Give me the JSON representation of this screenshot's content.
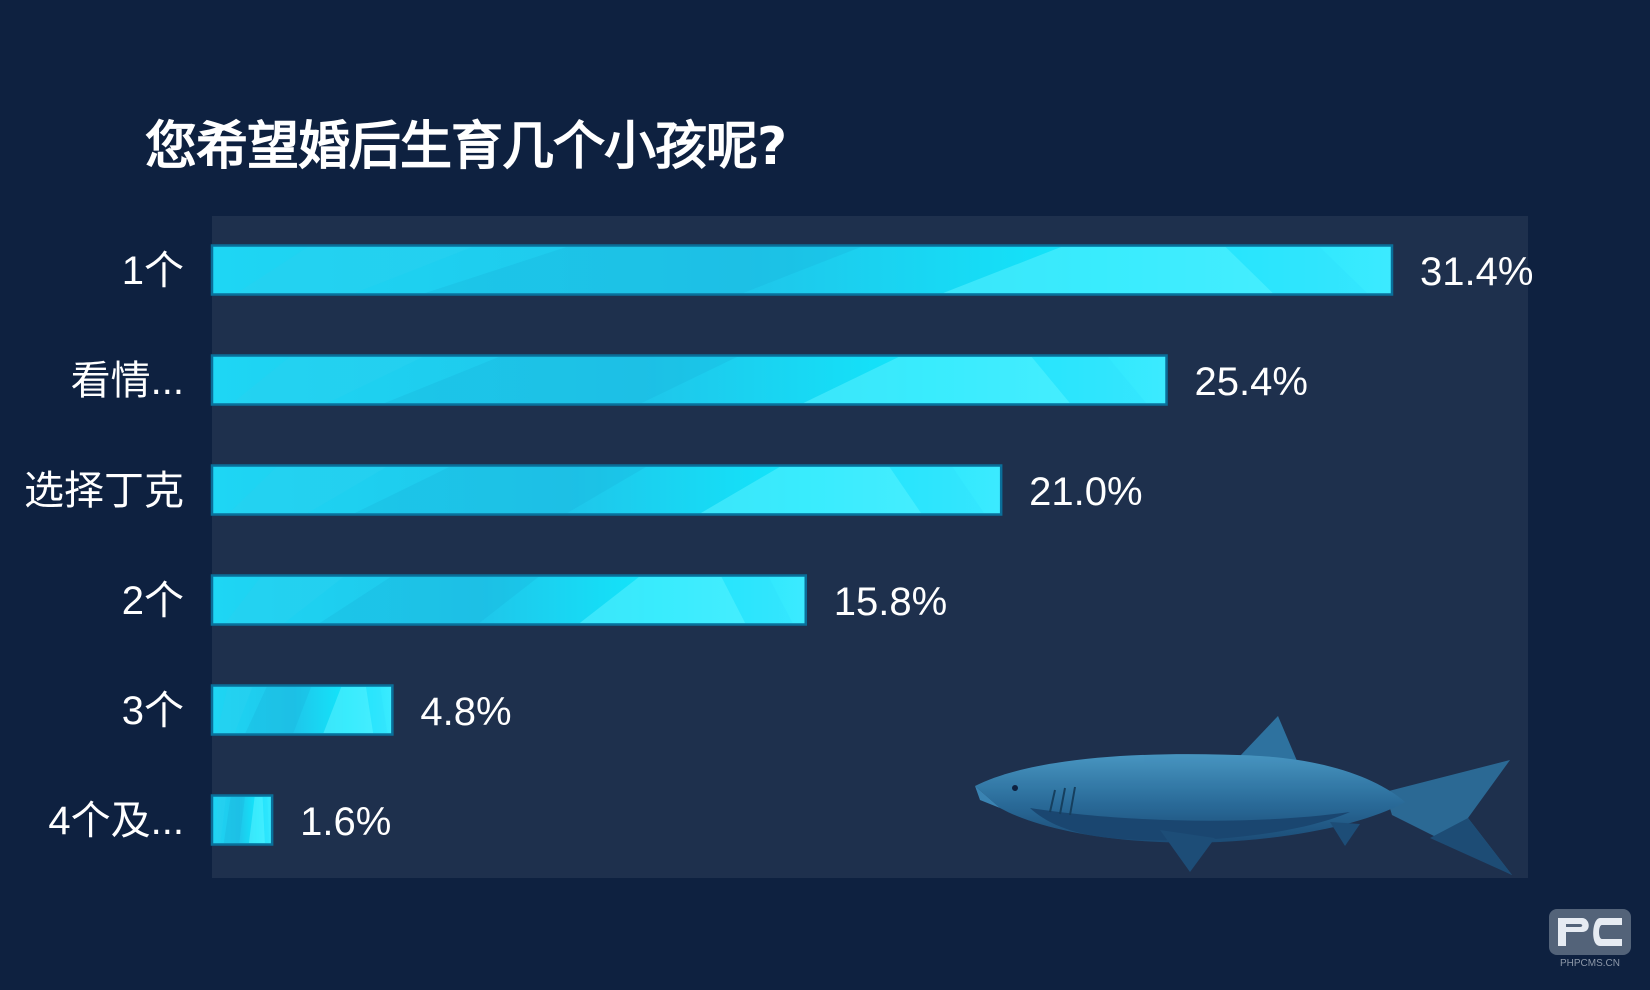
{
  "chart_data": {
    "type": "bar",
    "orientation": "horizontal",
    "title": "您希望婚后生育几个小孩呢?",
    "xlabel": "",
    "ylabel": "",
    "categories": [
      "1个",
      "看情...",
      "选择丁克",
      "2个",
      "3个",
      "4个及..."
    ],
    "values": [
      31.4,
      25.4,
      21.0,
      15.8,
      4.8,
      1.6
    ],
    "value_labels": [
      "31.4%",
      "25.4%",
      "21.0%",
      "15.8%",
      "4.8%",
      "1.6%"
    ],
    "unit": "%",
    "xlim": [
      0,
      35
    ],
    "grid": false,
    "legend": "none"
  },
  "colors": {
    "background": "#0e2140",
    "plot_area": "#1e304d",
    "bar_light": "#3ee8ff",
    "bar_mid": "#17d6f5",
    "bar_dark": "#1fb8e3",
    "bar_border": "#0a6f9a",
    "text": "#ffffff"
  },
  "decoration": {
    "shark": "shark-illustration",
    "watermark": "phpcms-logo",
    "watermark_text": "PHPCMS.CN"
  }
}
